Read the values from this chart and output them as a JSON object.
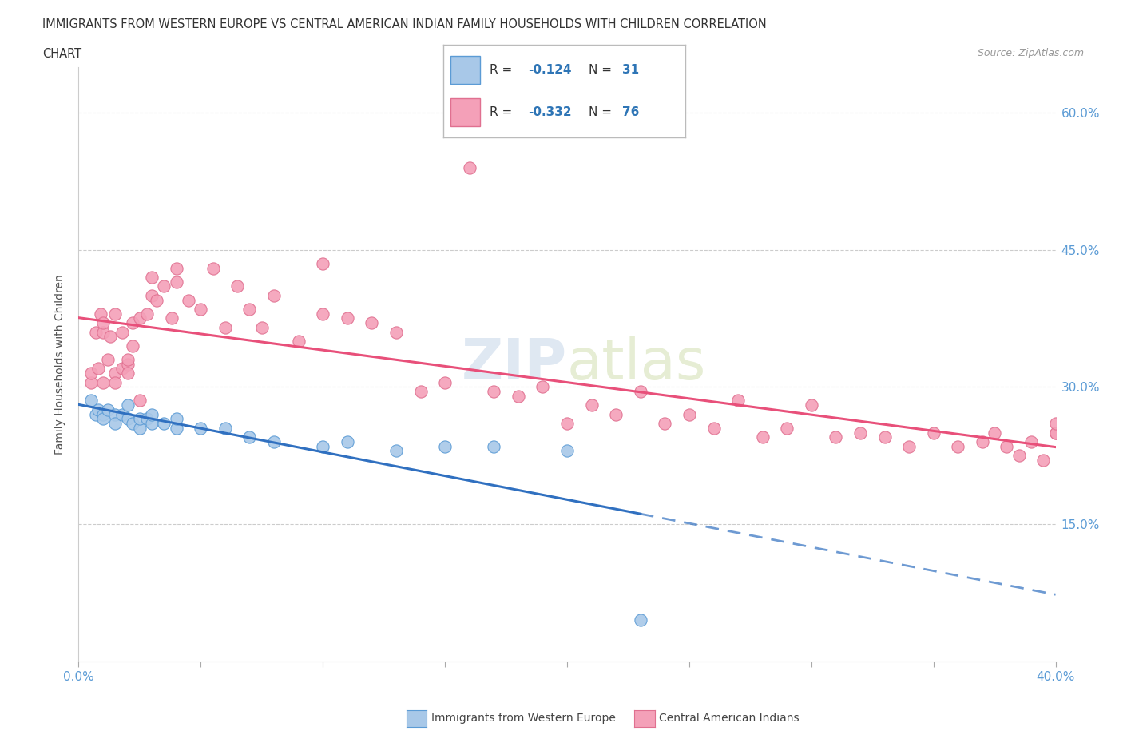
{
  "title_line1": "IMMIGRANTS FROM WESTERN EUROPE VS CENTRAL AMERICAN INDIAN FAMILY HOUSEHOLDS WITH CHILDREN CORRELATION",
  "title_line2": "CHART",
  "source": "Source: ZipAtlas.com",
  "ylabel": "Family Households with Children",
  "xlim": [
    0.0,
    0.4
  ],
  "ylim": [
    0.0,
    0.65
  ],
  "xticks": [
    0.0,
    0.05,
    0.1,
    0.15,
    0.2,
    0.25,
    0.3,
    0.35,
    0.4
  ],
  "yticks": [
    0.0,
    0.15,
    0.3,
    0.45,
    0.6
  ],
  "blue_color": "#a8c8e8",
  "blue_edge_color": "#5b9bd5",
  "pink_color": "#f4a0b8",
  "pink_edge_color": "#e07090",
  "blue_line_color": "#3070c0",
  "pink_line_color": "#e8507a",
  "R_blue": -0.124,
  "N_blue": 31,
  "R_pink": -0.332,
  "N_pink": 76,
  "watermark_color": "#c8d8e8",
  "blue_scatter_x": [
    0.005,
    0.007,
    0.008,
    0.01,
    0.01,
    0.012,
    0.015,
    0.015,
    0.018,
    0.02,
    0.02,
    0.022,
    0.025,
    0.025,
    0.028,
    0.03,
    0.03,
    0.035,
    0.04,
    0.04,
    0.05,
    0.06,
    0.07,
    0.08,
    0.1,
    0.11,
    0.13,
    0.15,
    0.17,
    0.2,
    0.23
  ],
  "blue_scatter_y": [
    0.285,
    0.27,
    0.275,
    0.27,
    0.265,
    0.275,
    0.27,
    0.26,
    0.27,
    0.265,
    0.28,
    0.26,
    0.255,
    0.265,
    0.265,
    0.26,
    0.27,
    0.26,
    0.255,
    0.265,
    0.255,
    0.255,
    0.245,
    0.24,
    0.235,
    0.24,
    0.23,
    0.235,
    0.235,
    0.23,
    0.045
  ],
  "pink_scatter_x": [
    0.005,
    0.005,
    0.007,
    0.008,
    0.009,
    0.01,
    0.01,
    0.01,
    0.012,
    0.013,
    0.015,
    0.015,
    0.015,
    0.018,
    0.018,
    0.02,
    0.02,
    0.02,
    0.022,
    0.022,
    0.025,
    0.025,
    0.028,
    0.03,
    0.03,
    0.032,
    0.035,
    0.038,
    0.04,
    0.04,
    0.045,
    0.05,
    0.055,
    0.06,
    0.065,
    0.07,
    0.075,
    0.08,
    0.09,
    0.1,
    0.1,
    0.11,
    0.12,
    0.13,
    0.14,
    0.15,
    0.16,
    0.17,
    0.18,
    0.19,
    0.2,
    0.21,
    0.22,
    0.23,
    0.24,
    0.25,
    0.26,
    0.27,
    0.28,
    0.29,
    0.3,
    0.31,
    0.32,
    0.33,
    0.34,
    0.35,
    0.36,
    0.37,
    0.375,
    0.38,
    0.385,
    0.39,
    0.395,
    0.4,
    0.4,
    0.4
  ],
  "pink_scatter_y": [
    0.305,
    0.315,
    0.36,
    0.32,
    0.38,
    0.305,
    0.36,
    0.37,
    0.33,
    0.355,
    0.315,
    0.305,
    0.38,
    0.36,
    0.32,
    0.325,
    0.315,
    0.33,
    0.345,
    0.37,
    0.285,
    0.375,
    0.38,
    0.4,
    0.42,
    0.395,
    0.41,
    0.375,
    0.415,
    0.43,
    0.395,
    0.385,
    0.43,
    0.365,
    0.41,
    0.385,
    0.365,
    0.4,
    0.35,
    0.38,
    0.435,
    0.375,
    0.37,
    0.36,
    0.295,
    0.305,
    0.54,
    0.295,
    0.29,
    0.3,
    0.26,
    0.28,
    0.27,
    0.295,
    0.26,
    0.27,
    0.255,
    0.285,
    0.245,
    0.255,
    0.28,
    0.245,
    0.25,
    0.245,
    0.235,
    0.25,
    0.235,
    0.24,
    0.25,
    0.235,
    0.225,
    0.24,
    0.22,
    0.25,
    0.25,
    0.26
  ]
}
